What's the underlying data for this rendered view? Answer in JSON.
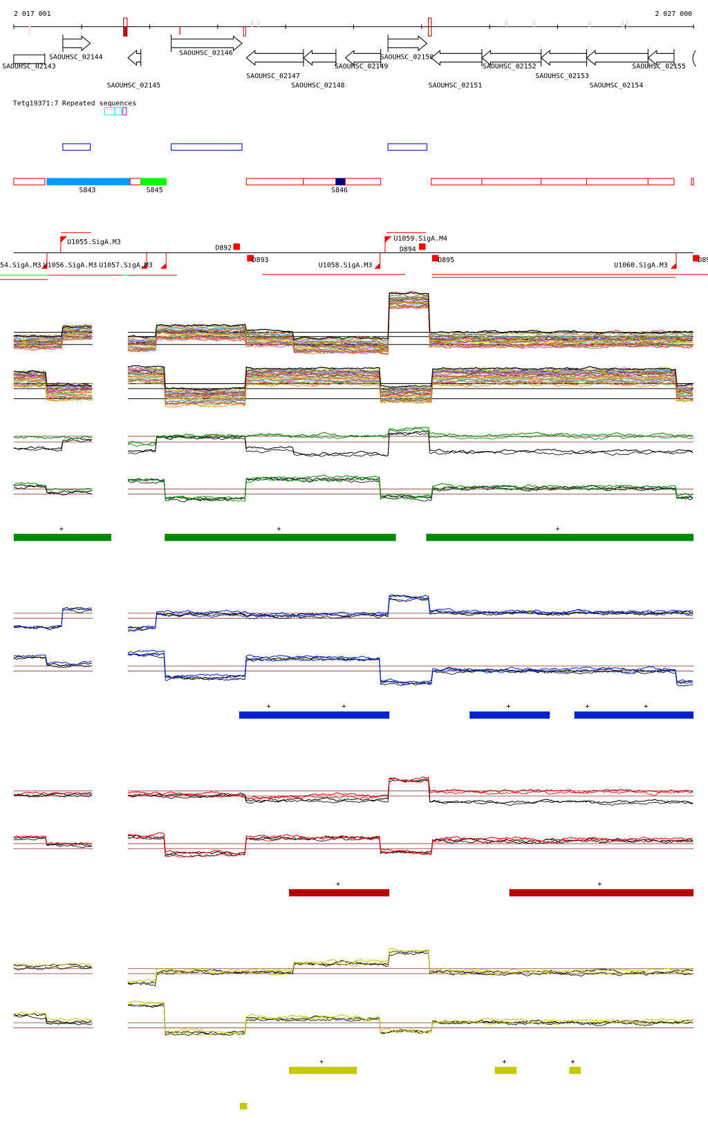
{
  "ruler": {
    "start_label": "2 017 001",
    "end_label": "2 027 000"
  },
  "genes": [
    {
      "label": "SAOUHSC_02143",
      "strand": "none"
    },
    {
      "label": "SAOUHSC_02144",
      "strand": "+"
    },
    {
      "label": "SAOUHSC_02145",
      "strand": "-"
    },
    {
      "label": "SAOUHSC_02146",
      "strand": "+"
    },
    {
      "label": "SAOUHSC_02147",
      "strand": "-"
    },
    {
      "label": "SAOUHSC_02148",
      "strand": "-"
    },
    {
      "label": "SAOUHSC_02149",
      "strand": "-"
    },
    {
      "label": "SAOUHSC_02150",
      "strand": "+"
    },
    {
      "label": "SAOUHSC_02151",
      "strand": "-"
    },
    {
      "label": "SAOUHSC_02152",
      "strand": "-"
    },
    {
      "label": "SAOUHSC_02153",
      "strand": "-"
    },
    {
      "label": "SAOUHSC_02154",
      "strand": "-"
    },
    {
      "label": "SAOUHSC_02155",
      "strand": "-"
    }
  ],
  "repeats": {
    "label_a": "Tetg19371:7",
    "label_b": "Repeated sequences"
  },
  "segments": {
    "s843": "S843",
    "s845": "S845",
    "s846": "S846",
    "colors": {
      "s843": "#0099ff",
      "s845": "#00ff00",
      "s846": "#000080",
      "outline": "#ff0000"
    }
  },
  "operons": {
    "u1055": "U1055.SigA.M3",
    "u1054": "54.SigA.M3",
    "u1056": "U1056.SigA.M3",
    "u1057": "U1057.SigA.M3",
    "d892": "D892",
    "d893": "D893",
    "u1058": "U1058.SigA.M3",
    "u1059": "U1059.SigA.M4",
    "d894": "D894",
    "d895": "D895",
    "u1060": "U1060.SigA.M3",
    "d896": "D89"
  },
  "conditions": [
    {
      "color": "#008800",
      "strand_marks": [
        "+",
        "+",
        "+"
      ]
    },
    {
      "color": "#0022cc",
      "strand_marks": [
        "+",
        "+",
        "+",
        "+",
        "+"
      ]
    },
    {
      "color": "#bb0000",
      "strand_marks": [
        "+",
        "+"
      ]
    },
    {
      "color": "#c8c800",
      "strand_marks": [
        "+",
        "+",
        "+"
      ]
    }
  ]
}
